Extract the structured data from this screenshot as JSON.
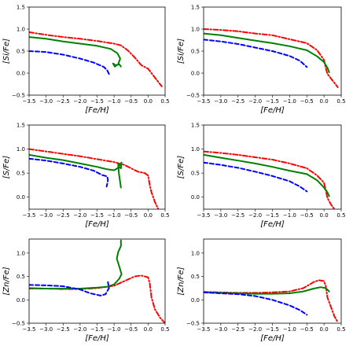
{
  "chart_data": [
    {
      "type": "line",
      "xlabel": "[Fe/H]",
      "ylabel": "[Si/Fe]",
      "xlim": [
        -3.5,
        0.5
      ],
      "ylim": [
        -0.5,
        1.5
      ],
      "xticks": [
        "−3.5",
        "−3.0",
        "−2.5",
        "−2.0",
        "−1.5",
        "−1.0",
        "−0.5",
        "0.0",
        "0.5"
      ],
      "yticks": [
        "−0.5",
        "0.0",
        "0.5",
        "1.0",
        "1.5"
      ],
      "series": [
        {
          "color": "#ff0000",
          "style": "dashdot",
          "x": [
            -3.5,
            -3.0,
            -2.5,
            -2.0,
            -1.5,
            -1.0,
            -0.8,
            -0.6,
            -0.4,
            -0.2,
            0.0,
            0.1,
            0.2,
            0.3,
            0.4
          ],
          "y": [
            0.93,
            0.87,
            0.82,
            0.78,
            0.73,
            0.67,
            0.63,
            0.52,
            0.36,
            0.18,
            0.1,
            0.0,
            -0.1,
            -0.2,
            -0.3
          ]
        },
        {
          "color": "#008000",
          "style": "solid",
          "x": [
            -3.5,
            -3.0,
            -2.5,
            -2.0,
            -1.5,
            -1.1,
            -0.9,
            -0.82,
            -0.88,
            -0.98,
            -1.03,
            -0.96,
            -0.85,
            -0.8
          ],
          "y": [
            0.82,
            0.78,
            0.72,
            0.67,
            0.62,
            0.55,
            0.45,
            0.33,
            0.2,
            0.15,
            0.22,
            0.18,
            0.2,
            0.15
          ]
        },
        {
          "color": "#0000ff",
          "style": "dashed",
          "x": [
            -3.5,
            -3.0,
            -2.5,
            -2.0,
            -1.6,
            -1.3,
            -1.2,
            -1.15
          ],
          "y": [
            0.5,
            0.48,
            0.42,
            0.33,
            0.24,
            0.14,
            0.06,
            -0.02
          ]
        }
      ]
    },
    {
      "type": "line",
      "xlabel": "[Fe/H]",
      "ylabel": "[Si/Fe]",
      "xlim": [
        -3.5,
        0.5
      ],
      "ylim": [
        -0.5,
        1.5
      ],
      "xticks": [
        "−3.5",
        "−3.0",
        "−2.5",
        "−2.0",
        "−1.5",
        "−1.0",
        "−0.5",
        "0.0",
        "0.5"
      ],
      "yticks": [
        "−0.5",
        "0.0",
        "0.5",
        "1.0",
        "1.5"
      ],
      "series": [
        {
          "color": "#ff0000",
          "style": "dashdot",
          "x": [
            -3.5,
            -3.0,
            -2.5,
            -2.0,
            -1.5,
            -1.0,
            -0.5,
            -0.2,
            0.0,
            0.05,
            0.1,
            0.2,
            0.3,
            0.4
          ],
          "y": [
            1.0,
            0.98,
            0.95,
            0.9,
            0.86,
            0.77,
            0.68,
            0.52,
            0.3,
            0.12,
            -0.02,
            -0.12,
            -0.22,
            -0.32
          ]
        },
        {
          "color": "#008000",
          "style": "solid",
          "x": [
            -3.5,
            -3.0,
            -2.5,
            -2.0,
            -1.5,
            -1.0,
            -0.5,
            -0.2,
            0.0,
            0.1,
            0.15
          ],
          "y": [
            0.9,
            0.86,
            0.8,
            0.74,
            0.68,
            0.61,
            0.52,
            0.38,
            0.25,
            0.12,
            0.02
          ]
        },
        {
          "color": "#0000ff",
          "style": "dashed",
          "x": [
            -3.5,
            -3.0,
            -2.5,
            -2.0,
            -1.5,
            -1.0,
            -0.7,
            -0.5
          ],
          "y": [
            0.76,
            0.72,
            0.66,
            0.58,
            0.5,
            0.39,
            0.28,
            0.14
          ]
        }
      ]
    },
    {
      "type": "line",
      "xlabel": "[Fe/H]",
      "ylabel": "[S/Fe]",
      "xlim": [
        -3.5,
        0.5
      ],
      "ylim": [
        -0.25,
        1.5
      ],
      "xticks": [
        "−3.5",
        "−3.0",
        "−2.5",
        "−2.0",
        "−1.5",
        "−1.0",
        "−0.5",
        "0.0",
        "0.5"
      ],
      "yticks": [
        "0.0",
        "0.5",
        "1.0",
        "1.5"
      ],
      "series": [
        {
          "color": "#ff0000",
          "style": "dashdot",
          "x": [
            -3.5,
            -3.0,
            -2.5,
            -2.0,
            -1.5,
            -1.0,
            -0.7,
            -0.5,
            -0.3,
            -0.1,
            0.0,
            0.05,
            0.1,
            0.2,
            0.3
          ],
          "y": [
            1.0,
            0.95,
            0.9,
            0.85,
            0.79,
            0.73,
            0.67,
            0.6,
            0.53,
            0.5,
            0.45,
            0.25,
            0.1,
            -0.1,
            -0.25
          ]
        },
        {
          "color": "#008000",
          "style": "solid",
          "x": [
            -3.5,
            -3.0,
            -2.5,
            -2.0,
            -1.5,
            -1.2,
            -1.0,
            -0.9,
            -0.82,
            -0.78,
            -0.8,
            -0.85,
            -0.88,
            -0.86,
            -0.8
          ],
          "y": [
            0.88,
            0.82,
            0.77,
            0.7,
            0.63,
            0.58,
            0.56,
            0.6,
            0.68,
            0.72,
            0.6,
            0.62,
            0.7,
            0.5,
            0.2
          ]
        },
        {
          "color": "#0000ff",
          "style": "dashed",
          "x": [
            -3.5,
            -3.0,
            -2.5,
            -2.0,
            -1.6,
            -1.35,
            -1.2,
            -1.18,
            -1.22
          ],
          "y": [
            0.8,
            0.76,
            0.7,
            0.63,
            0.55,
            0.46,
            0.43,
            0.35,
            0.22
          ]
        }
      ]
    },
    {
      "type": "line",
      "xlabel": "[Fe/H]",
      "ylabel": "[S/Fe]",
      "xlim": [
        -3.5,
        0.5
      ],
      "ylim": [
        -0.25,
        1.5
      ],
      "xticks": [
        "−3.5",
        "−3.0",
        "−2.5",
        "−2.0",
        "−1.5",
        "−1.0",
        "−0.5",
        "0.0",
        "0.5"
      ],
      "yticks": [
        "0.0",
        "0.5",
        "1.0",
        "1.5"
      ],
      "series": [
        {
          "color": "#ff0000",
          "style": "dashdot",
          "x": [
            -3.5,
            -3.0,
            -2.5,
            -2.0,
            -1.5,
            -1.0,
            -0.5,
            -0.2,
            0.0,
            0.05,
            0.1,
            0.2,
            0.3
          ],
          "y": [
            0.95,
            0.92,
            0.88,
            0.83,
            0.78,
            0.7,
            0.6,
            0.45,
            0.3,
            0.15,
            -0.02,
            -0.15,
            -0.25
          ]
        },
        {
          "color": "#008000",
          "style": "solid",
          "x": [
            -3.5,
            -3.0,
            -2.5,
            -2.0,
            -1.5,
            -1.0,
            -0.5,
            -0.2,
            0.0,
            0.1,
            0.15
          ],
          "y": [
            0.88,
            0.82,
            0.76,
            0.7,
            0.63,
            0.55,
            0.48,
            0.35,
            0.2,
            0.1,
            0.02
          ]
        },
        {
          "color": "#0000ff",
          "style": "dashed",
          "x": [
            -3.5,
            -3.0,
            -2.5,
            -2.0,
            -1.5,
            -1.0,
            -0.7,
            -0.5
          ],
          "y": [
            0.72,
            0.67,
            0.61,
            0.53,
            0.44,
            0.33,
            0.22,
            0.12
          ]
        }
      ]
    },
    {
      "type": "line",
      "xlabel": "[Fe/H]",
      "ylabel": "[Zn/Fe]",
      "xlim": [
        -3.5,
        0.5
      ],
      "ylim": [
        -0.5,
        1.3
      ],
      "xticks": [
        "−3.5",
        "−3.0",
        "−2.5",
        "−2.0",
        "−1.5",
        "−1.0",
        "−0.5",
        "0.0",
        "0.5"
      ],
      "yticks": [
        "−0.5",
        "0.0",
        "0.5",
        "1.0"
      ],
      "series": [
        {
          "color": "#ff0000",
          "style": "dashdot",
          "x": [
            -3.5,
            -3.0,
            -2.5,
            -2.0,
            -1.5,
            -1.0,
            -0.7,
            -0.4,
            -0.2,
            0.0,
            0.05,
            0.1,
            0.2,
            0.35,
            0.5
          ],
          "y": [
            0.24,
            0.24,
            0.23,
            0.23,
            0.25,
            0.3,
            0.4,
            0.5,
            0.52,
            0.48,
            0.35,
            0.05,
            -0.2,
            -0.38,
            -0.5
          ]
        },
        {
          "color": "#008000",
          "style": "solid",
          "x": [
            -3.5,
            -3.0,
            -2.5,
            -2.0,
            -1.5,
            -1.2,
            -1.0,
            -0.85,
            -0.78,
            -0.85,
            -0.92,
            -0.88,
            -0.8,
            -0.8
          ],
          "y": [
            0.25,
            0.24,
            0.24,
            0.24,
            0.26,
            0.28,
            0.33,
            0.45,
            0.55,
            0.72,
            0.88,
            1.02,
            1.15,
            1.27
          ]
        },
        {
          "color": "#0000ff",
          "style": "dashed",
          "x": [
            -3.5,
            -3.0,
            -2.5,
            -2.0,
            -1.7,
            -1.4,
            -1.25,
            -1.15,
            -1.18
          ],
          "y": [
            0.32,
            0.31,
            0.29,
            0.22,
            0.14,
            0.09,
            0.12,
            0.25,
            0.38
          ]
        }
      ]
    },
    {
      "type": "line",
      "xlabel": "[Fe/H]",
      "ylabel": "[Zn/Fe]",
      "xlim": [
        -3.5,
        0.5
      ],
      "ylim": [
        -0.5,
        1.3
      ],
      "xticks": [
        "−3.5",
        "−3.0",
        "−2.5",
        "−2.0",
        "−1.5",
        "−1.0",
        "−0.5",
        "0.0",
        "0.5"
      ],
      "yticks": [
        "−0.5",
        "0.0",
        "0.5",
        "1.0"
      ],
      "series": [
        {
          "color": "#ff0000",
          "style": "dashdot",
          "x": [
            -3.5,
            -3.0,
            -2.5,
            -2.0,
            -1.5,
            -1.0,
            -0.6,
            -0.3,
            -0.15,
            0.0,
            0.05,
            0.1,
            0.2,
            0.3,
            0.4
          ],
          "y": [
            0.17,
            0.16,
            0.15,
            0.15,
            0.16,
            0.18,
            0.25,
            0.38,
            0.42,
            0.4,
            0.3,
            0.05,
            -0.15,
            -0.35,
            -0.48
          ]
        },
        {
          "color": "#008000",
          "style": "solid",
          "x": [
            -3.5,
            -3.0,
            -2.5,
            -2.0,
            -1.5,
            -1.0,
            -0.6,
            -0.3,
            -0.1,
            0.05,
            0.15
          ],
          "y": [
            0.16,
            0.15,
            0.14,
            0.13,
            0.13,
            0.14,
            0.18,
            0.24,
            0.27,
            0.25,
            0.18
          ]
        },
        {
          "color": "#0000ff",
          "style": "dashed",
          "x": [
            -3.5,
            -3.0,
            -2.5,
            -2.0,
            -1.5,
            -1.0,
            -0.7,
            -0.5
          ],
          "y": [
            0.16,
            0.14,
            0.12,
            0.08,
            0.0,
            -0.12,
            -0.22,
            -0.32
          ]
        }
      ]
    }
  ]
}
